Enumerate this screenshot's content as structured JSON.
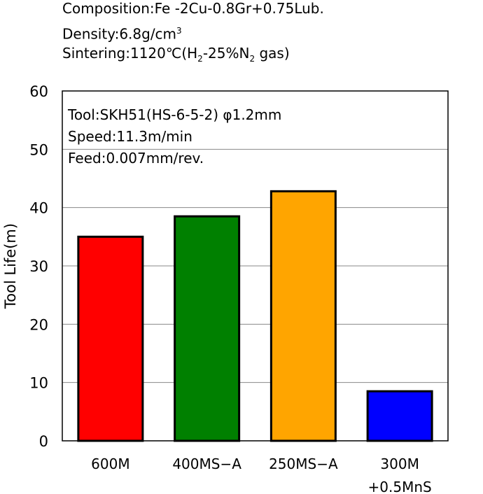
{
  "header": {
    "composition": "Composition:Fe -2Cu-0.8Gr+0.75Lub.",
    "density_prefix": "Density:6.8g/cm",
    "density_sup": "3",
    "sintering_prefix": "Sintering:1120℃(H",
    "sintering_sub1": "2",
    "sintering_mid": "-25%N",
    "sintering_sub2": "2",
    "sintering_suffix": " gas)"
  },
  "chart_data": {
    "type": "bar",
    "ylabel": "Tool Life(m)",
    "ylim": [
      0,
      60
    ],
    "yticks": [
      "0",
      "10",
      "20",
      "30",
      "40",
      "50",
      "60"
    ],
    "grid": true,
    "annotation": [
      "Tool:SKH51(HS-6-5-2) φ1.2mm",
      "Speed:11.3m/min",
      "Feed:0.007mm/rev."
    ],
    "categories": [
      [
        "600M"
      ],
      [
        "400MS−A"
      ],
      [
        "250MS−A"
      ],
      [
        "300M",
        "+0.5MnS"
      ]
    ],
    "values": [
      35,
      38.5,
      42.8,
      8.5
    ],
    "colors": [
      "#ff0000",
      "#008000",
      "#ffa500",
      "#0000ff"
    ]
  }
}
